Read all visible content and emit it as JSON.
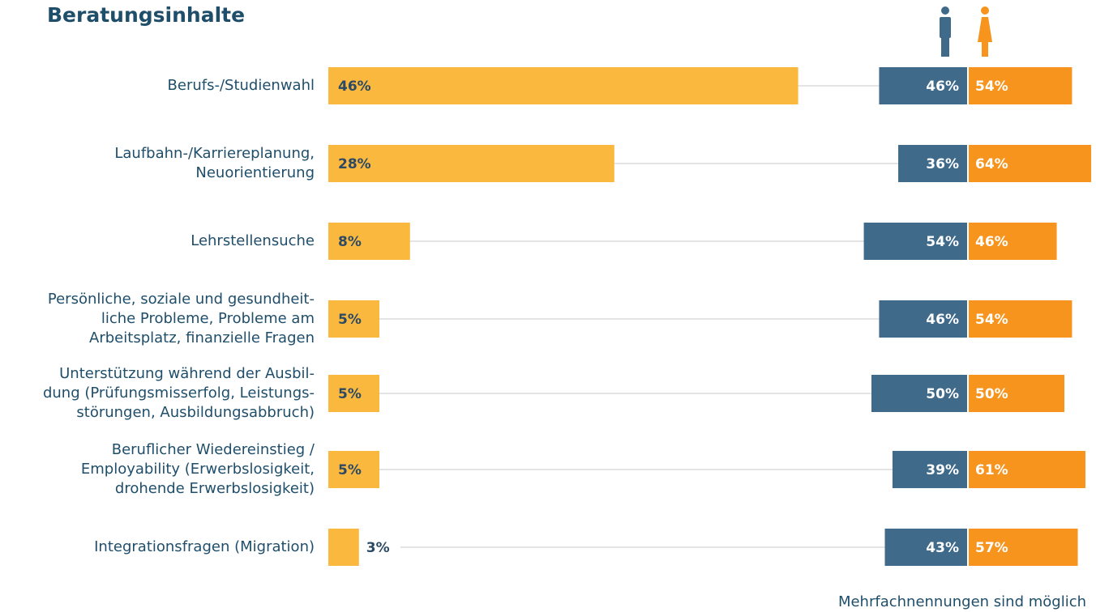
{
  "chart_data": {
    "type": "bar",
    "title": "Beratungsinhalte",
    "categories": [
      "Berufs-/Studienwahl",
      "Laufbahn-/Karriereplanung,\nNeuorientierung",
      "Lehrstellensuche",
      "Persönliche, soziale und gesundheit-\nliche Probleme, Probleme am\nArbeitsplatz, finanzielle Fragen",
      "Unterstützung während der Ausbil-\ndung (Prüfungsmisserfolg, Leistungs-\nstörungen, Ausbildungsabbruch)",
      "Beruflicher Wiedereinstieg /\nEmployability (Erwerbslosigkeit,\ndrohende Erwerbslosigkeit)",
      "Integrationsfragen (Migration)"
    ],
    "values": [
      46,
      28,
      8,
      5,
      5,
      5,
      3
    ],
    "value_labels": [
      "46%",
      "28%",
      "8%",
      "5%",
      "5%",
      "5%",
      "3%"
    ],
    "color": "#fbb83f",
    "series": [
      {
        "name": "Männer",
        "color": "#3f6a8a",
        "values": [
          46,
          36,
          54,
          46,
          50,
          39,
          43
        ],
        "value_labels": [
          "46%",
          "36%",
          "54%",
          "46%",
          "50%",
          "39%",
          "43%"
        ]
      },
      {
        "name": "Frauen",
        "color": "#f7941d",
        "values": [
          54,
          64,
          46,
          54,
          50,
          61,
          57
        ],
        "value_labels": [
          "54%",
          "64%",
          "46%",
          "54%",
          "50%",
          "61%",
          "57%"
        ]
      }
    ],
    "note": "Mehrfachnennungen sind möglich"
  }
}
